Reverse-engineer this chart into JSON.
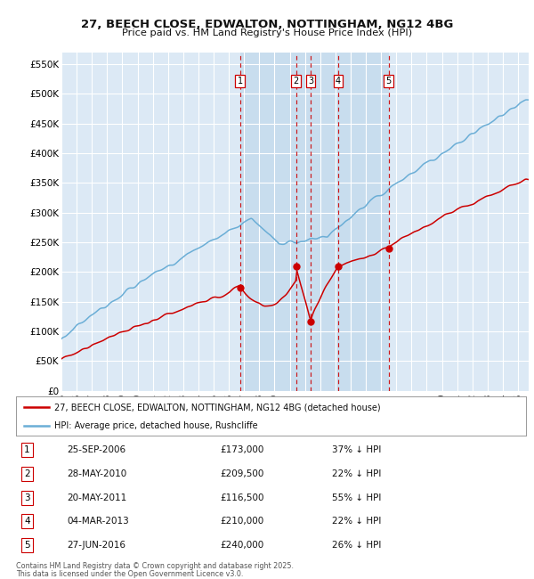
{
  "title": "27, BEECH CLOSE, EDWALTON, NOTTINGHAM, NG12 4BG",
  "subtitle": "Price paid vs. HM Land Registry's House Price Index (HPI)",
  "legend_property": "27, BEECH CLOSE, EDWALTON, NOTTINGHAM, NG12 4BG (detached house)",
  "legend_hpi": "HPI: Average price, detached house, Rushcliffe",
  "footer1": "Contains HM Land Registry data © Crown copyright and database right 2025.",
  "footer2": "This data is licensed under the Open Government Licence v3.0.",
  "transactions": [
    {
      "num": 1,
      "date": "25-SEP-2006",
      "price": 173000,
      "pct": "37%",
      "dir": "↓"
    },
    {
      "num": 2,
      "date": "28-MAY-2010",
      "price": 209500,
      "pct": "22%",
      "dir": "↓"
    },
    {
      "num": 3,
      "date": "20-MAY-2011",
      "price": 116500,
      "pct": "55%",
      "dir": "↓"
    },
    {
      "num": 4,
      "date": "04-MAR-2013",
      "price": 210000,
      "pct": "22%",
      "dir": "↓"
    },
    {
      "num": 5,
      "date": "27-JUN-2016",
      "price": 240000,
      "pct": "26%",
      "dir": "↓"
    }
  ],
  "transaction_dates_decimal": [
    2006.73,
    2010.41,
    2011.38,
    2013.17,
    2016.49
  ],
  "sale_prices": [
    173000,
    209500,
    116500,
    210000,
    240000
  ],
  "hpi_color": "#6baed6",
  "property_color": "#cc0000",
  "dashed_line_color": "#cc0000",
  "background_color": "#dce9f5",
  "grid_color": "#ffffff",
  "ylim": [
    0,
    570000
  ],
  "xlim_start": 1995.0,
  "xlim_end": 2025.7,
  "yticks": [
    0,
    50000,
    100000,
    150000,
    200000,
    250000,
    300000,
    350000,
    400000,
    450000,
    500000,
    550000
  ],
  "ylabels": [
    "£0",
    "£50K",
    "£100K",
    "£150K",
    "£200K",
    "£250K",
    "£300K",
    "£350K",
    "£400K",
    "£450K",
    "£500K",
    "£550K"
  ]
}
